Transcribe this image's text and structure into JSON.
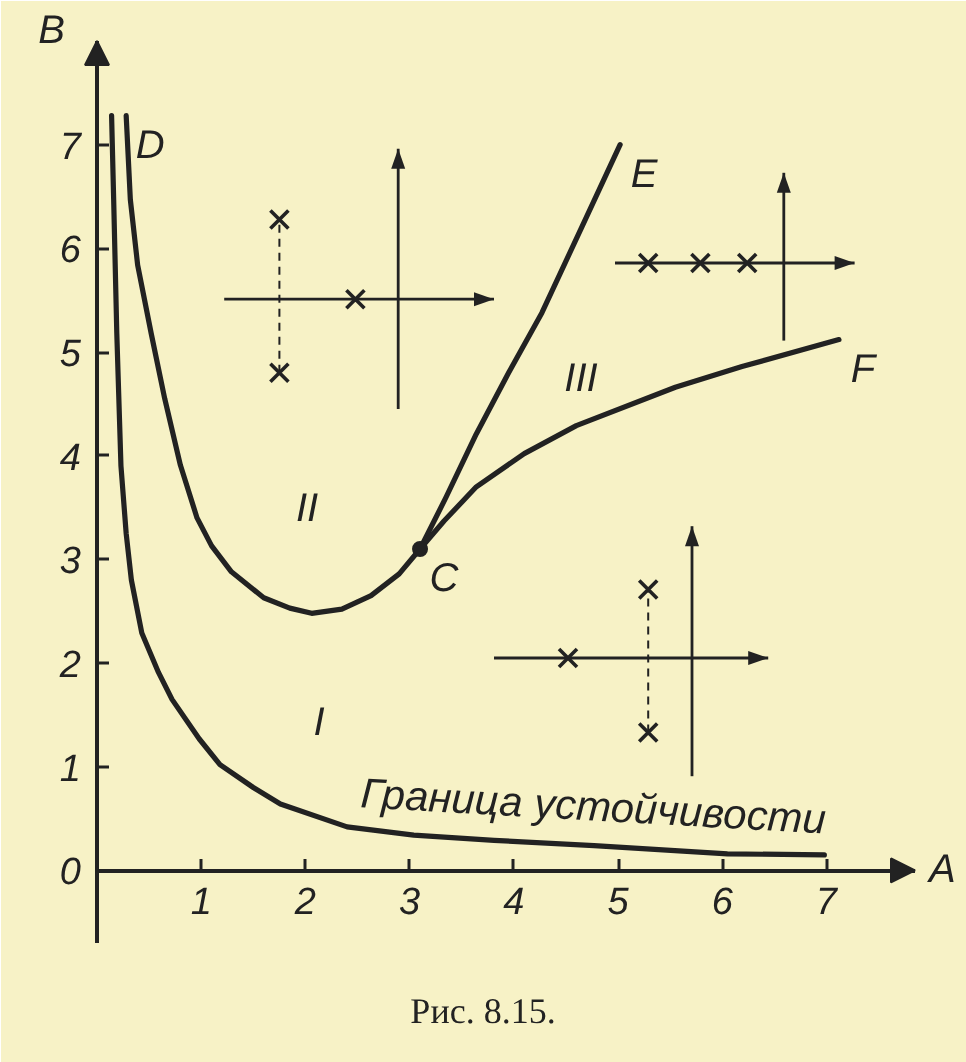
{
  "chart_data": {
    "type": "line",
    "xlabel": "A",
    "ylabel": "B",
    "xlim": [
      0,
      7.85
    ],
    "ylim": [
      -0.7,
      8.0
    ],
    "xticks": [
      1,
      2,
      3,
      4,
      5,
      6,
      7
    ],
    "yticks": [
      0,
      1,
      2,
      3,
      4,
      5,
      6,
      7
    ],
    "series": [
      {
        "name": "Граница устойчивости",
        "color": "#222222",
        "x": [
          0.14,
          0.16,
          0.19,
          0.23,
          0.28,
          0.33,
          0.43,
          0.59,
          0.72,
          0.98,
          1.18,
          1.5,
          1.76,
          2.4,
          3.04,
          3.81,
          4.77,
          6.05,
          6.98
        ],
        "values": [
          7.28,
          6.47,
          5.18,
          3.9,
          3.25,
          2.8,
          2.29,
          1.91,
          1.65,
          1.27,
          1.02,
          0.8,
          0.64,
          0.42,
          0.34,
          0.29,
          0.24,
          0.16,
          0.15
        ]
      },
      {
        "color": "#222222",
        "x": [
          0.28,
          0.32,
          0.39,
          0.52,
          0.65,
          0.8,
          0.96,
          1.1,
          1.29,
          1.6,
          1.85,
          2.06,
          2.35,
          2.63,
          2.9,
          3.1
        ],
        "values": [
          7.28,
          6.47,
          5.84,
          5.18,
          4.55,
          3.91,
          3.4,
          3.13,
          2.88,
          2.63,
          2.53,
          2.48,
          2.52,
          2.65,
          2.86,
          3.1
        ]
      },
      {
        "color": "#222222",
        "x": [
          3.1,
          3.35,
          3.64,
          3.95,
          4.27,
          4.65,
          5.02
        ],
        "values": [
          3.1,
          3.6,
          4.21,
          4.8,
          5.38,
          6.2,
          7.0
        ]
      },
      {
        "color": "#222222",
        "x": [
          3.1,
          3.33,
          3.64,
          4.1,
          4.6,
          5.55,
          6.19,
          7.12
        ],
        "values": [
          3.1,
          3.37,
          3.7,
          4.02,
          4.29,
          4.66,
          4.86,
          5.12
        ]
      },
      {
        "type": "scatter",
        "color": "#222222",
        "marker": "circle",
        "x": [
          3.1
        ],
        "values": [
          3.1
        ]
      }
    ],
    "annotations": [
      {
        "text": "D",
        "x": 0.28,
        "y": 7.28
      },
      {
        "text": "E",
        "x": 5.02,
        "y": 7.0
      },
      {
        "text": "F",
        "x": 7.12,
        "y": 5.12
      },
      {
        "text": "C",
        "x": 3.1,
        "y": 3.1
      },
      "I",
      "II",
      "III",
      "Рис. 8.15."
    ]
  }
}
